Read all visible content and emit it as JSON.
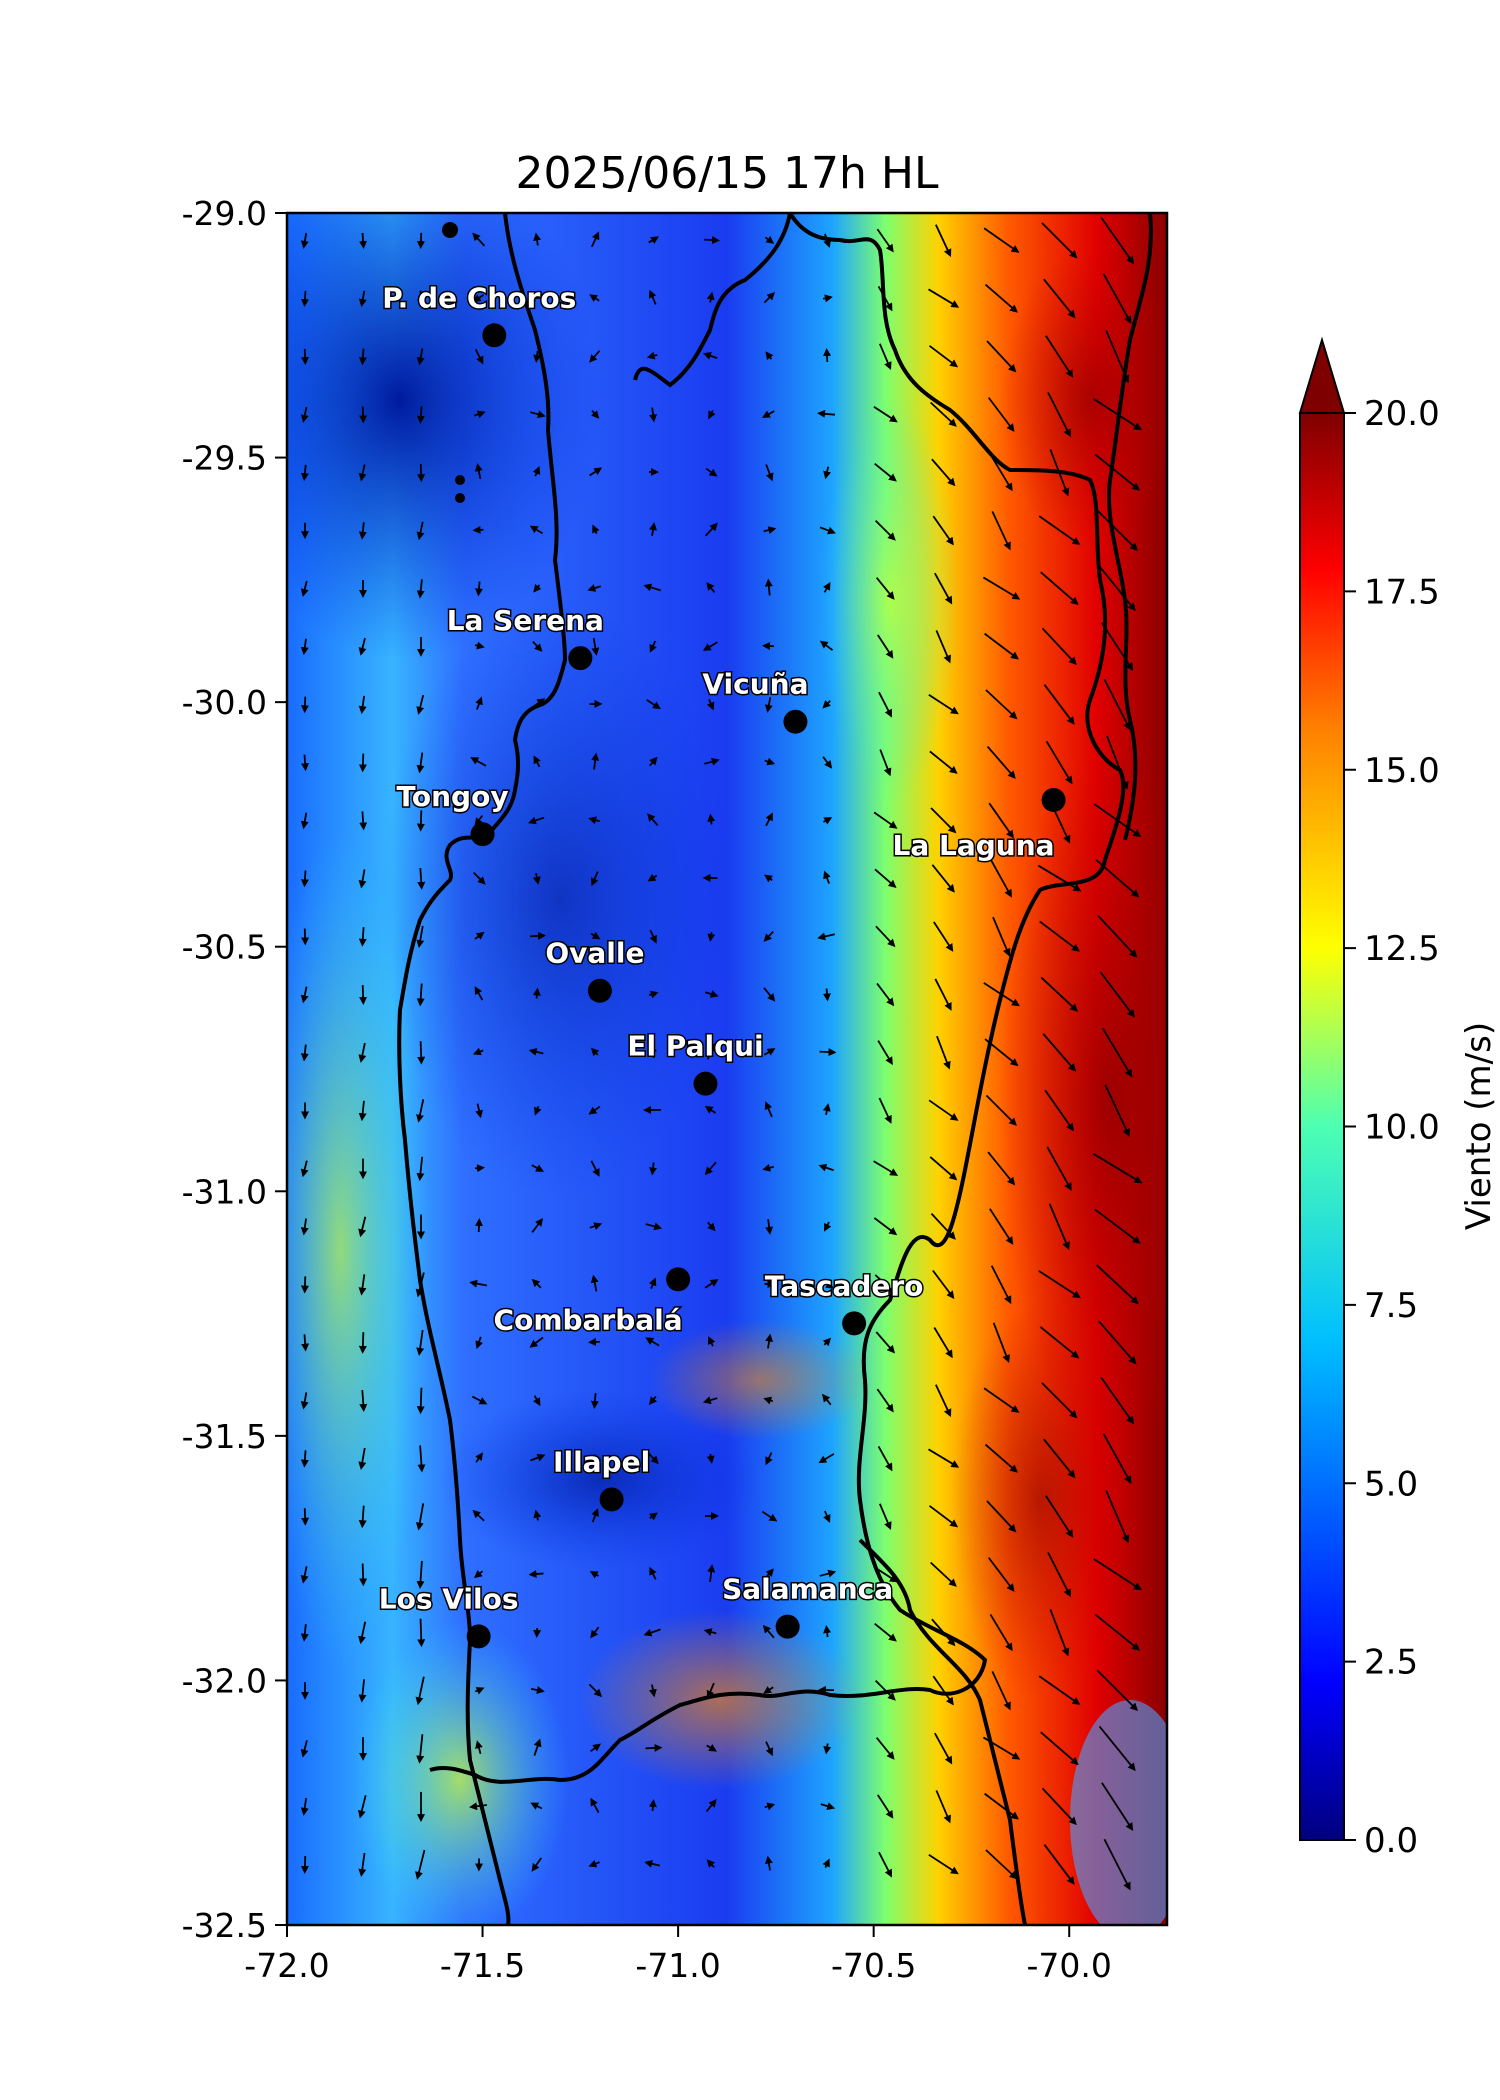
{
  "title": "2025/06/15 17h HL",
  "map": {
    "lon_range": [
      -72.0,
      -69.75
    ],
    "lat_range": [
      -32.5,
      -29.0
    ],
    "x_ticks": [
      "-72.0",
      "-71.5",
      "-71.0",
      "-70.5",
      "-70.0"
    ],
    "y_ticks": [
      "-29.0",
      "-29.5",
      "-30.0",
      "-30.5",
      "-31.0",
      "-31.5",
      "-32.0",
      "-32.5"
    ]
  },
  "colorbar": {
    "label": "Viento (m/s)",
    "range": [
      0,
      20
    ],
    "extend": "max",
    "ticks": [
      "0.0",
      "2.5",
      "5.0",
      "7.5",
      "10.0",
      "12.5",
      "15.0",
      "17.5",
      "20.0"
    ]
  },
  "cities": [
    {
      "name": "P. de Choros",
      "lon": -71.47,
      "lat": -29.25
    },
    {
      "name": "La Serena",
      "lon": -71.25,
      "lat": -29.91
    },
    {
      "name": "Vicuña",
      "lon": -70.7,
      "lat": -30.04
    },
    {
      "name": "Tongoy",
      "lon": -71.5,
      "lat": -30.27
    },
    {
      "name": "La Laguna",
      "lon": -70.04,
      "lat": -30.2
    },
    {
      "name": "Ovalle",
      "lon": -71.2,
      "lat": -30.59
    },
    {
      "name": "El Palqui",
      "lon": -70.93,
      "lat": -30.78
    },
    {
      "name": "Combarbalá",
      "lon": -71.0,
      "lat": -31.18
    },
    {
      "name": "Tascadero",
      "lon": -70.55,
      "lat": -31.27
    },
    {
      "name": "Illapel",
      "lon": -71.17,
      "lat": -31.63
    },
    {
      "name": "Los Vilos",
      "lon": -71.51,
      "lat": -31.91
    },
    {
      "name": "Salamanca",
      "lon": -70.72,
      "lat": -31.89
    }
  ],
  "colors": {
    "jet": [
      "#00007f",
      "#0000ff",
      "#007fff",
      "#00ffff",
      "#7fff7f",
      "#ffff00",
      "#ff7f00",
      "#ff0000",
      "#7f0000"
    ]
  }
}
